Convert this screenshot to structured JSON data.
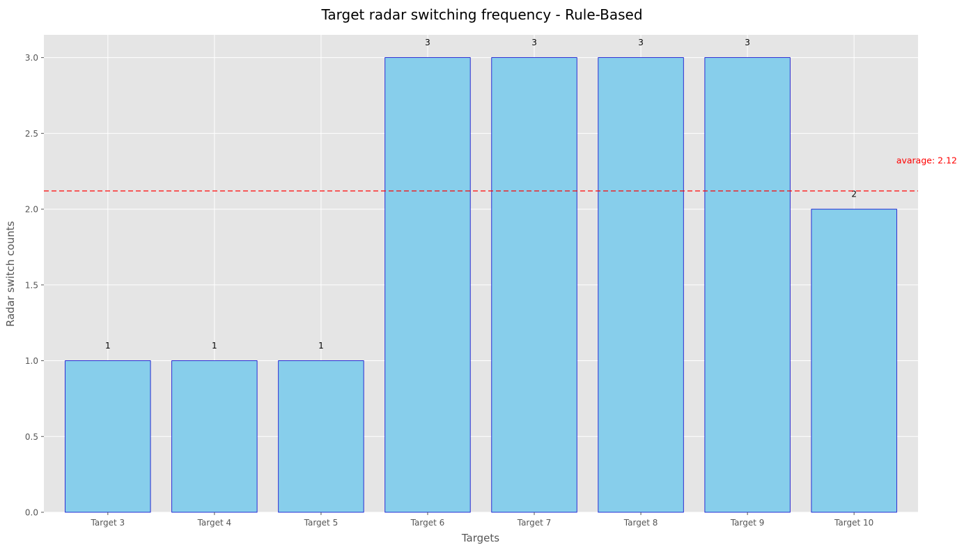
{
  "chart_data": {
    "type": "bar",
    "title": "Target radar switching frequency - Rule-Based",
    "xlabel": "Targets",
    "ylabel": "Radar switch counts",
    "categories": [
      "Target 3",
      "Target 4",
      "Target 5",
      "Target 6",
      "Target 7",
      "Target 8",
      "Target 9",
      "Target 10"
    ],
    "values": [
      1,
      1,
      1,
      3,
      3,
      3,
      3,
      2
    ],
    "data_labels": [
      "1",
      "1",
      "1",
      "3",
      "3",
      "3",
      "3",
      "2"
    ],
    "ylim": [
      0,
      3.15
    ],
    "yticks": [
      0.0,
      0.5,
      1.0,
      1.5,
      2.0,
      2.5,
      3.0
    ],
    "ytick_labels": [
      "0.0",
      "0.5",
      "1.0",
      "1.5",
      "2.0",
      "2.5",
      "3.0"
    ],
    "grid": true,
    "average": {
      "value": 2.12,
      "label": "avarage: 2.12",
      "color": "#ff0000"
    },
    "colors": {
      "bar_fill": "#87ceeb",
      "bar_edge": "#0000cd",
      "plot_background": "#e5e5e5",
      "grid": "#ffffff",
      "tick_text": "#555555",
      "axis_label": "#555555"
    }
  }
}
